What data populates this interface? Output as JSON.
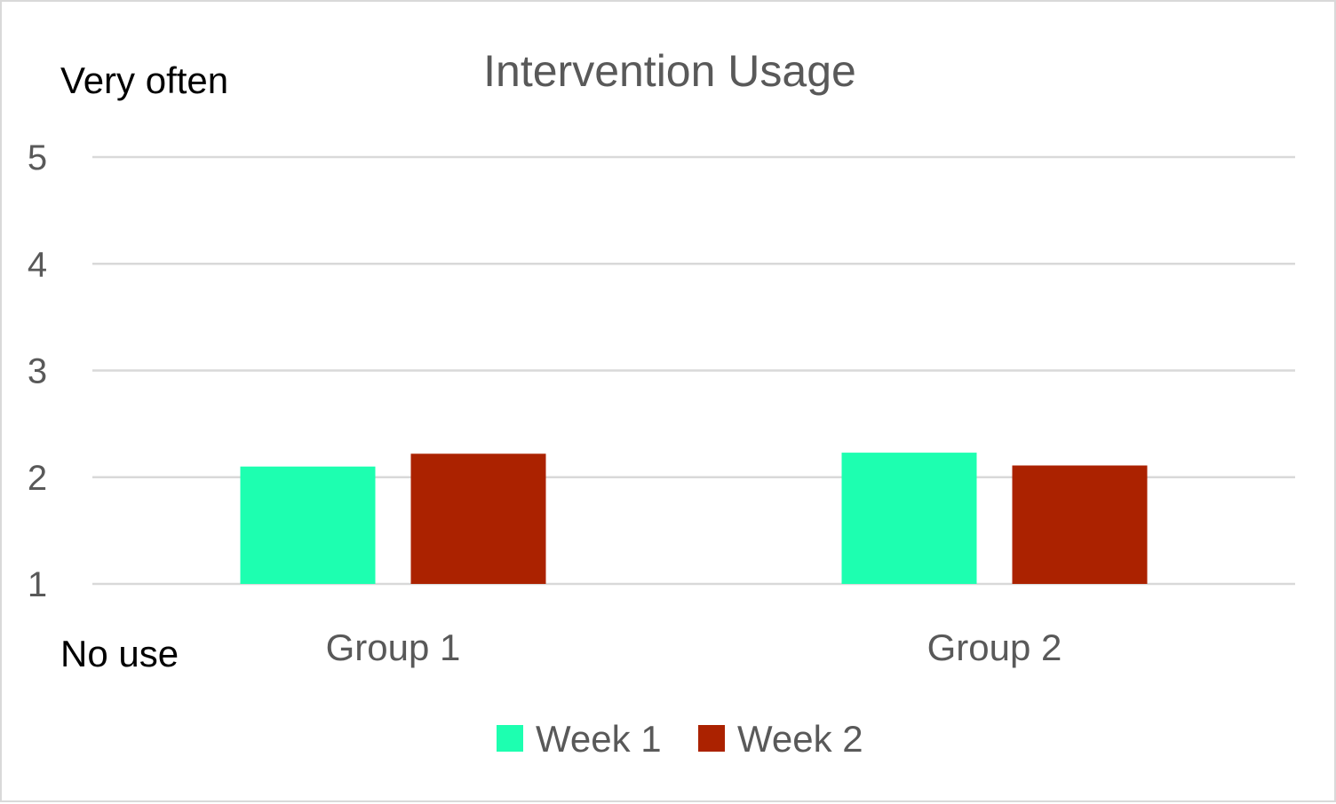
{
  "chart_data": {
    "type": "bar",
    "title": "Intervention Usage",
    "categories": [
      "Group 1",
      "Group 2"
    ],
    "series": [
      {
        "name": "Week 1",
        "values": [
          2.1,
          2.23
        ],
        "color": "#1dffb0"
      },
      {
        "name": "Week 2",
        "values": [
          2.22,
          2.11
        ],
        "color": "#ab2200"
      }
    ],
    "ylim": [
      1,
      5
    ],
    "yticks": [
      "1",
      "2",
      "3",
      "4",
      "5"
    ],
    "xlabel": "",
    "ylabel": "",
    "annotations": {
      "top": "Very often",
      "bottom": "No use"
    },
    "grid": true,
    "legend_position": "bottom"
  }
}
